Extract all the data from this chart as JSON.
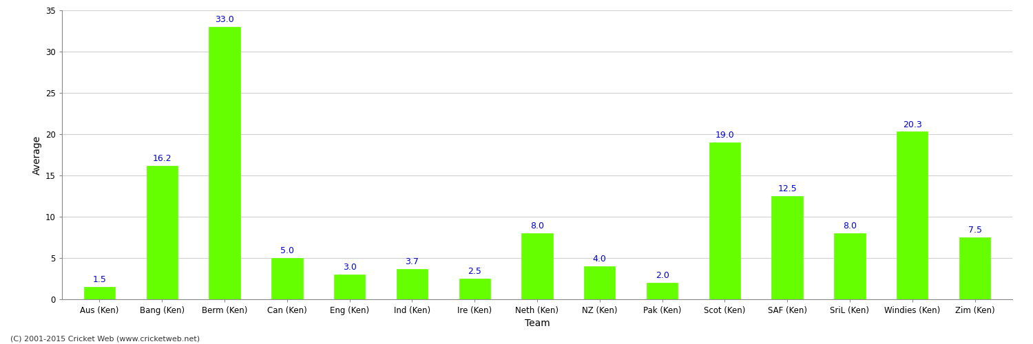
{
  "xlabel": "Team",
  "ylabel": "Average",
  "categories": [
    "Aus (Ken)",
    "Bang (Ken)",
    "Berm (Ken)",
    "Can (Ken)",
    "Eng (Ken)",
    "Ind (Ken)",
    "Ire (Ken)",
    "Neth (Ken)",
    "NZ (Ken)",
    "Pak (Ken)",
    "Scot (Ken)",
    "SAF (Ken)",
    "SriL (Ken)",
    "Windies (Ken)",
    "Zim (Ken)"
  ],
  "values": [
    1.5,
    16.2,
    33.0,
    5.0,
    3.0,
    3.7,
    2.5,
    8.0,
    4.0,
    2.0,
    19.0,
    12.5,
    8.0,
    20.3,
    7.5
  ],
  "bar_color": "#66ff00",
  "bar_edge_color": "#66ff00",
  "label_color": "#0000cc",
  "label_fontsize": 9,
  "axis_label_fontsize": 10,
  "tick_fontsize": 8.5,
  "ylim": [
    0,
    35
  ],
  "yticks": [
    0,
    5,
    10,
    15,
    20,
    25,
    30,
    35
  ],
  "grid_color": "#d0d0d0",
  "background_color": "#ffffff",
  "footer": "(C) 2001-2015 Cricket Web (www.cricketweb.net)"
}
